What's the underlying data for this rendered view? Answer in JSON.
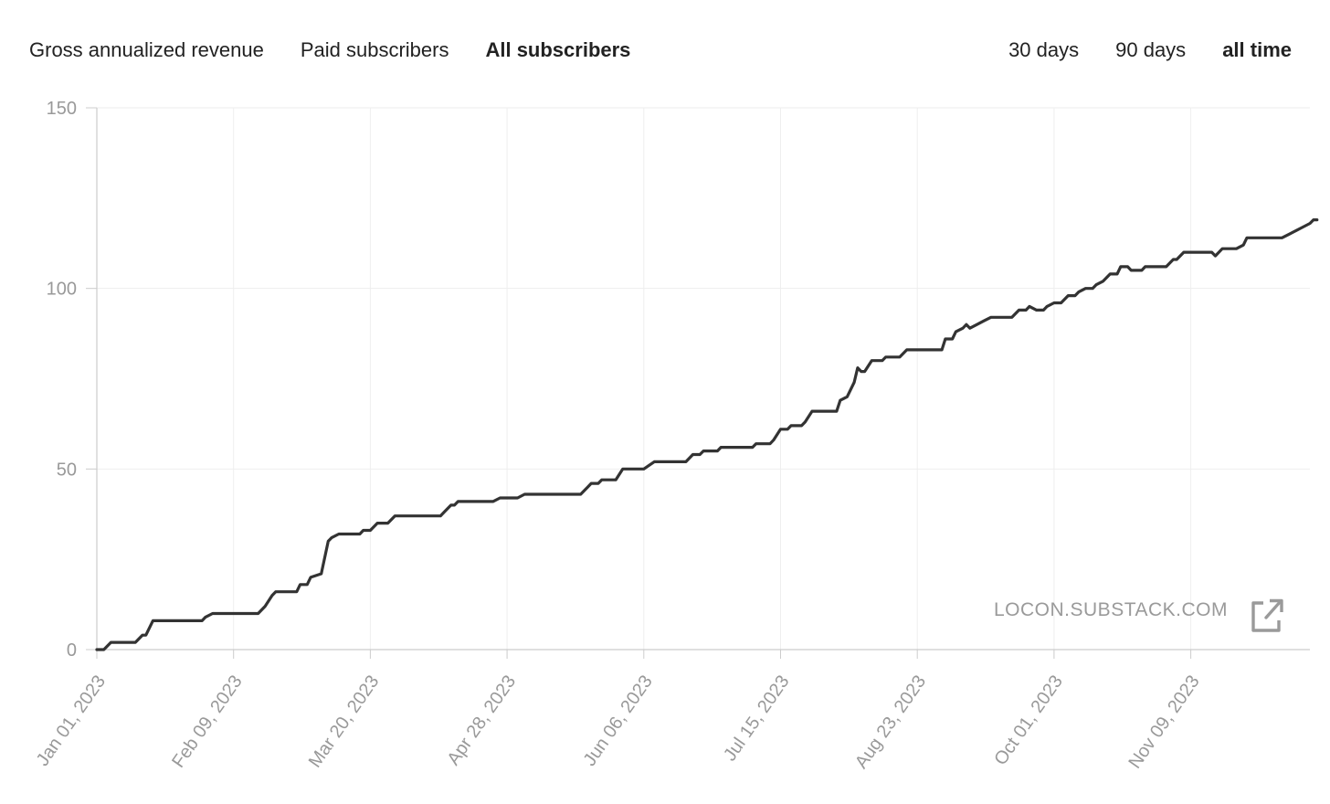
{
  "metric_tabs": [
    {
      "label": "Gross annualized revenue",
      "active": false
    },
    {
      "label": "Paid subscribers",
      "active": false
    },
    {
      "label": "All subscribers",
      "active": true
    }
  ],
  "range_tabs": [
    {
      "label": "30 days",
      "active": false
    },
    {
      "label": "90 days",
      "active": false
    },
    {
      "label": "all time",
      "active": true
    }
  ],
  "watermark": {
    "text": "LOCON.SUBSTACK.COM",
    "icon": "external-link-icon"
  },
  "colors": {
    "line": "#333333",
    "grid": "#eeeeee",
    "axis": "#cccccc",
    "tick_text": "#999999"
  },
  "chart_data": {
    "type": "line",
    "title": "",
    "xlabel": "",
    "ylabel": "",
    "ylim": [
      0,
      150
    ],
    "yticks": [
      0,
      50,
      100,
      150
    ],
    "xlim": [
      "2023-01-01",
      "2023-12-15"
    ],
    "xtick_labels": [
      "Jan 01, 2023",
      "Feb 09, 2023",
      "Mar 20, 2023",
      "Apr 28, 2023",
      "Jun 06, 2023",
      "Jul 15, 2023",
      "Aug 23, 2023",
      "Oct 01, 2023",
      "Nov 09, 2023"
    ],
    "grid": true,
    "series": [
      {
        "points": [
          [
            "2023-01-01",
            0
          ],
          [
            "2023-01-03",
            0
          ],
          [
            "2023-01-05",
            2
          ],
          [
            "2023-01-12",
            2
          ],
          [
            "2023-01-14",
            4
          ],
          [
            "2023-01-15",
            4
          ],
          [
            "2023-01-17",
            8
          ],
          [
            "2023-01-31",
            8
          ],
          [
            "2023-02-01",
            9
          ],
          [
            "2023-02-03",
            10
          ],
          [
            "2023-02-16",
            10
          ],
          [
            "2023-02-18",
            12
          ],
          [
            "2023-02-20",
            15
          ],
          [
            "2023-02-21",
            16
          ],
          [
            "2023-02-27",
            16
          ],
          [
            "2023-02-28",
            18
          ],
          [
            "2023-03-02",
            18
          ],
          [
            "2023-03-03",
            20
          ],
          [
            "2023-03-06",
            21
          ],
          [
            "2023-03-08",
            30
          ],
          [
            "2023-03-09",
            31
          ],
          [
            "2023-03-11",
            32
          ],
          [
            "2023-03-17",
            32
          ],
          [
            "2023-03-18",
            33
          ],
          [
            "2023-03-20",
            33
          ],
          [
            "2023-03-22",
            35
          ],
          [
            "2023-03-25",
            35
          ],
          [
            "2023-03-27",
            37
          ],
          [
            "2023-04-09",
            37
          ],
          [
            "2023-04-10",
            38
          ],
          [
            "2023-04-12",
            40
          ],
          [
            "2023-04-13",
            40
          ],
          [
            "2023-04-14",
            41
          ],
          [
            "2023-04-24",
            41
          ],
          [
            "2023-04-26",
            42
          ],
          [
            "2023-05-01",
            42
          ],
          [
            "2023-05-03",
            43
          ],
          [
            "2023-05-19",
            43
          ],
          [
            "2023-05-21",
            45
          ],
          [
            "2023-05-22",
            46
          ],
          [
            "2023-05-24",
            46
          ],
          [
            "2023-05-25",
            47
          ],
          [
            "2023-05-29",
            47
          ],
          [
            "2023-05-31",
            50
          ],
          [
            "2023-06-06",
            50
          ],
          [
            "2023-06-09",
            52
          ],
          [
            "2023-06-18",
            52
          ],
          [
            "2023-06-20",
            54
          ],
          [
            "2023-06-22",
            54
          ],
          [
            "2023-06-23",
            55
          ],
          [
            "2023-06-27",
            55
          ],
          [
            "2023-06-28",
            56
          ],
          [
            "2023-07-07",
            56
          ],
          [
            "2023-07-08",
            57
          ],
          [
            "2023-07-12",
            57
          ],
          [
            "2023-07-13",
            58
          ],
          [
            "2023-07-15",
            61
          ],
          [
            "2023-07-17",
            61
          ],
          [
            "2023-07-18",
            62
          ],
          [
            "2023-07-21",
            62
          ],
          [
            "2023-07-22",
            63
          ],
          [
            "2023-07-24",
            66
          ],
          [
            "2023-07-31",
            66
          ],
          [
            "2023-08-01",
            69
          ],
          [
            "2023-08-03",
            70
          ],
          [
            "2023-08-05",
            74
          ],
          [
            "2023-08-06",
            78
          ],
          [
            "2023-08-07",
            77
          ],
          [
            "2023-08-08",
            77
          ],
          [
            "2023-08-10",
            80
          ],
          [
            "2023-08-13",
            80
          ],
          [
            "2023-08-14",
            81
          ],
          [
            "2023-08-18",
            81
          ],
          [
            "2023-08-20",
            83
          ],
          [
            "2023-08-30",
            83
          ],
          [
            "2023-08-31",
            86
          ],
          [
            "2023-09-02",
            86
          ],
          [
            "2023-09-03",
            88
          ],
          [
            "2023-09-05",
            89
          ],
          [
            "2023-09-06",
            90
          ],
          [
            "2023-09-07",
            89
          ],
          [
            "2023-09-09",
            90
          ],
          [
            "2023-09-11",
            91
          ],
          [
            "2023-09-13",
            92
          ],
          [
            "2023-09-19",
            92
          ],
          [
            "2023-09-21",
            94
          ],
          [
            "2023-09-23",
            94
          ],
          [
            "2023-09-24",
            95
          ],
          [
            "2023-09-26",
            94
          ],
          [
            "2023-09-28",
            94
          ],
          [
            "2023-09-29",
            95
          ],
          [
            "2023-10-01",
            96
          ],
          [
            "2023-10-03",
            96
          ],
          [
            "2023-10-05",
            98
          ],
          [
            "2023-10-07",
            98
          ],
          [
            "2023-10-08",
            99
          ],
          [
            "2023-10-10",
            100
          ],
          [
            "2023-10-12",
            100
          ],
          [
            "2023-10-13",
            101
          ],
          [
            "2023-10-15",
            102
          ],
          [
            "2023-10-17",
            104
          ],
          [
            "2023-10-19",
            104
          ],
          [
            "2023-10-20",
            106
          ],
          [
            "2023-10-22",
            106
          ],
          [
            "2023-10-23",
            105
          ],
          [
            "2023-10-26",
            105
          ],
          [
            "2023-10-27",
            106
          ],
          [
            "2023-11-02",
            106
          ],
          [
            "2023-11-04",
            108
          ],
          [
            "2023-11-05",
            108
          ],
          [
            "2023-11-07",
            110
          ],
          [
            "2023-11-15",
            110
          ],
          [
            "2023-11-16",
            109
          ],
          [
            "2023-11-18",
            111
          ],
          [
            "2023-11-22",
            111
          ],
          [
            "2023-11-24",
            112
          ],
          [
            "2023-11-25",
            114
          ],
          [
            "2023-12-05",
            114
          ],
          [
            "2023-12-07",
            115
          ],
          [
            "2023-12-09",
            116
          ],
          [
            "2023-12-11",
            117
          ],
          [
            "2023-12-13",
            118
          ],
          [
            "2023-12-14",
            119
          ],
          [
            "2023-12-15",
            119
          ]
        ]
      }
    ]
  }
}
